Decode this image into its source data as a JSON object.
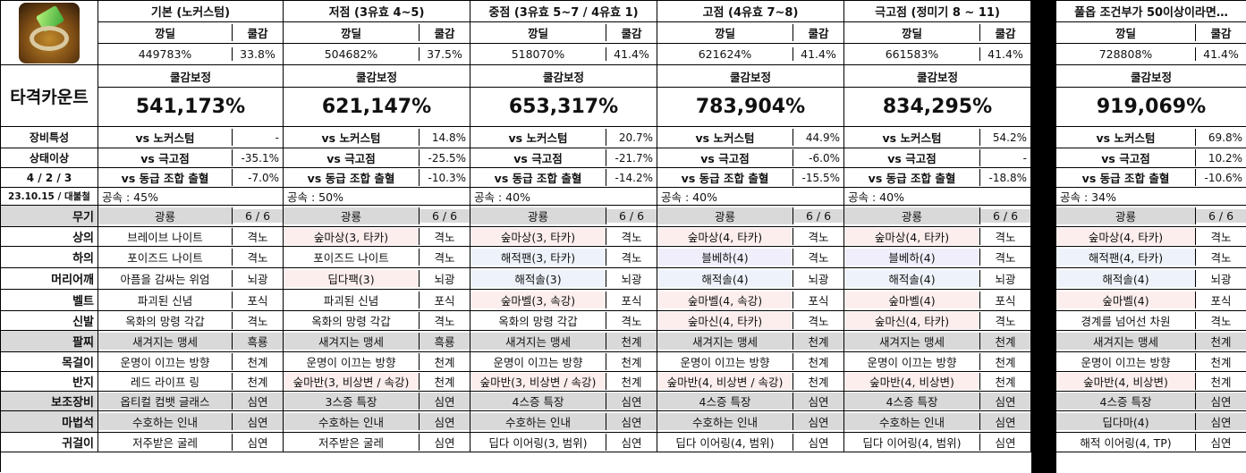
{
  "icon": "ring-item-icon",
  "character_label": "타격카운트",
  "header_cols": [
    "깡딜",
    "쿨감"
  ],
  "coolreduce_label": "쿨감보정",
  "columns": [
    {
      "title": "기본 (노커스텀)",
      "dmg": "449783%",
      "cd": "33.8%",
      "adj": "541,173%",
      "vs_boss": "-",
      "vs_hard": "-35.1%",
      "vs_combo": "-7.0%",
      "atkspeed": "공속 : 45%",
      "weapon": "광룡",
      "weapon_lv": "6 / 6",
      "top": "브레이브 나이트",
      "top_s": "격노",
      "bottom": "포이즈드 나이트",
      "bottom_s": "격노",
      "hat": "아픔을 감싸는 위엄",
      "hat_s": "뇌광",
      "belt": "파괴된 신념",
      "belt_s": "포식",
      "shoes": "옥화의 망령 각갑",
      "shoes_s": "격노",
      "bracelet": "새겨지는 맹세",
      "bracelet_s": "흑룡",
      "necklace": "운명이 이끄는 방향",
      "necklace_s": "천계",
      "ring": "레드 라이프 링",
      "ring_s": "천계",
      "sub": "옵티컬 컴뱃 글래스",
      "sub_s": "심연",
      "magic": "수호하는 인내",
      "magic_s": "심연",
      "earring": "저주받은 굴레",
      "earring_s": "심연"
    },
    {
      "title": "저점 (3유효 4~5)",
      "dmg": "504682%",
      "cd": "37.5%",
      "adj": "621,147%",
      "vs_boss": "14.8%",
      "vs_hard": "-25.5%",
      "vs_combo": "-10.3%",
      "atkspeed": "공속 : 50%",
      "weapon": "광룡",
      "weapon_lv": "6 / 6",
      "top": "숲마상(3, 타카)",
      "top_s": "격노",
      "bottom": "포이즈드 나이트",
      "bottom_s": "격노",
      "hat": "딥다팩(3)",
      "hat_s": "뇌광",
      "belt": "파괴된 신념",
      "belt_s": "포식",
      "shoes": "옥화의 망령 각갑",
      "shoes_s": "격노",
      "bracelet": "새겨지는 맹세",
      "bracelet_s": "흑룡",
      "necklace": "운명이 이끄는 방향",
      "necklace_s": "천계",
      "ring": "숲마반(3, 비상변 / 속강)",
      "ring_s": "천계",
      "sub": "3스증 특장",
      "sub_s": "심연",
      "magic": "수호하는 인내",
      "magic_s": "심연",
      "earring": "저주받은 굴레",
      "earring_s": "심연"
    },
    {
      "title": "중점 (3유효 5~7 / 4유효 1)",
      "dmg": "518070%",
      "cd": "41.4%",
      "adj": "653,317%",
      "vs_boss": "20.7%",
      "vs_hard": "-21.7%",
      "vs_combo": "-14.2%",
      "atkspeed": "공속 : 40%",
      "weapon": "광룡",
      "weapon_lv": "6 / 6",
      "top": "숲마상(3, 타카)",
      "top_s": "격노",
      "bottom": "해적팬(3, 타카)",
      "bottom_s": "격노",
      "hat": "해적솔(3)",
      "hat_s": "뇌광",
      "belt": "숲마벨(3, 속강)",
      "belt_s": "포식",
      "shoes": "옥화의 망령 각갑",
      "shoes_s": "격노",
      "bracelet": "새겨지는 맹세",
      "bracelet_s": "천계",
      "necklace": "운명이 이끄는 방향",
      "necklace_s": "천계",
      "ring": "숲마반(3, 비상변 / 속강)",
      "ring_s": "천계",
      "sub": "4스증 특장",
      "sub_s": "심연",
      "magic": "수호하는 인내",
      "magic_s": "심연",
      "earring": "딥다 이어링(3, 범위)",
      "earring_s": "심연"
    },
    {
      "title": "고점 (4유효 7~8)",
      "dmg": "621624%",
      "cd": "41.4%",
      "adj": "783,904%",
      "vs_boss": "44.9%",
      "vs_hard": "-6.0%",
      "vs_combo": "-15.5%",
      "atkspeed": "공속 : 40%",
      "weapon": "광룡",
      "weapon_lv": "6 / 6",
      "top": "숲마상(4, 타카)",
      "top_s": "격노",
      "bottom": "블베하(4)",
      "bottom_s": "격노",
      "hat": "해적솔(4)",
      "hat_s": "뇌광",
      "belt": "숲마벨(4, 속강)",
      "belt_s": "포식",
      "shoes": "숲마신(4, 타카)",
      "shoes_s": "격노",
      "bracelet": "새겨지는 맹세",
      "bracelet_s": "천계",
      "necklace": "운명이 이끄는 방향",
      "necklace_s": "천계",
      "ring": "숲마반(4, 비상변 / 속강)",
      "ring_s": "천계",
      "sub": "4스증 특장",
      "sub_s": "심연",
      "magic": "수호하는 인내",
      "magic_s": "심연",
      "earring": "딥다 이어링(4, 범위)",
      "earring_s": "심연"
    },
    {
      "title": "극고점 (정미기 8 ~ 11)",
      "dmg": "661583%",
      "cd": "41.4%",
      "adj": "834,295%",
      "vs_boss": "54.2%",
      "vs_hard": "-",
      "vs_combo": "-18.8%",
      "atkspeed": "공속 : 40%",
      "weapon": "광룡",
      "weapon_lv": "6 / 6",
      "top": "숲마상(4, 타카)",
      "top_s": "격노",
      "bottom": "블베하(4)",
      "bottom_s": "격노",
      "hat": "해적솔(4)",
      "hat_s": "뇌광",
      "belt": "숲마벨(4)",
      "belt_s": "포식",
      "shoes": "숲마신(4, 타카)",
      "shoes_s": "격노",
      "bracelet": "새겨지는 맹세",
      "bracelet_s": "천계",
      "necklace": "운명이 이끄는 방향",
      "necklace_s": "천계",
      "ring": "숲마반(4, 비상변)",
      "ring_s": "천계",
      "sub": "4스증 특장",
      "sub_s": "심연",
      "magic": "수호하는 인내",
      "magic_s": "심연",
      "earring": "딥다 이어링(4, 범위)",
      "earring_s": "심연"
    },
    {
      "title": "풀옵 조건부가 50이상이라면…",
      "dmg": "728808%",
      "cd": "41.4%",
      "adj": "919,069%",
      "vs_boss": "69.8%",
      "vs_hard": "10.2%",
      "vs_combo": "-10.6%",
      "atkspeed": "공속 : 34%",
      "weapon": "광룡",
      "weapon_lv": "6 / 6",
      "top": "숲마상(4, 타카)",
      "top_s": "격노",
      "bottom": "해적팬(4, 타카)",
      "bottom_s": "격노",
      "hat": "해적솔(4)",
      "hat_s": "뇌광",
      "belt": "숲마벨(4)",
      "belt_s": "포식",
      "shoes": "경계를 넘어선 차원",
      "shoes_s": "격노",
      "bracelet": "새겨지는 맹세",
      "bracelet_s": "천계",
      "necklace": "운명이 이끄는 방향",
      "necklace_s": "천계",
      "ring": "숲마반(4, 비상변)",
      "ring_s": "천계",
      "sub": "4스증 특장",
      "sub_s": "심연",
      "magic": "딥다마(4)",
      "magic_s": "심연",
      "earring": "해적 이어링(4, TP)",
      "earring_s": "심연"
    }
  ],
  "row_labels": {
    "equip_trait": "장비특성",
    "status": "상태이상",
    "ratio": "4 / 2 / 3",
    "date": "23.10.15 / 대불철",
    "vs_boss": "vs 노커스텀",
    "vs_hard": "vs 극고점",
    "vs_combo": "vs 동급 조합 출혈",
    "weapon": "무기",
    "top": "상의",
    "bottom": "하의",
    "hat": "머리어깨",
    "belt": "벨트",
    "shoes": "신발",
    "bracelet": "팔찌",
    "necklace": "목걸이",
    "ring": "반지",
    "sub": "보조장비",
    "magic": "마법석",
    "earring": "귀걸이"
  }
}
